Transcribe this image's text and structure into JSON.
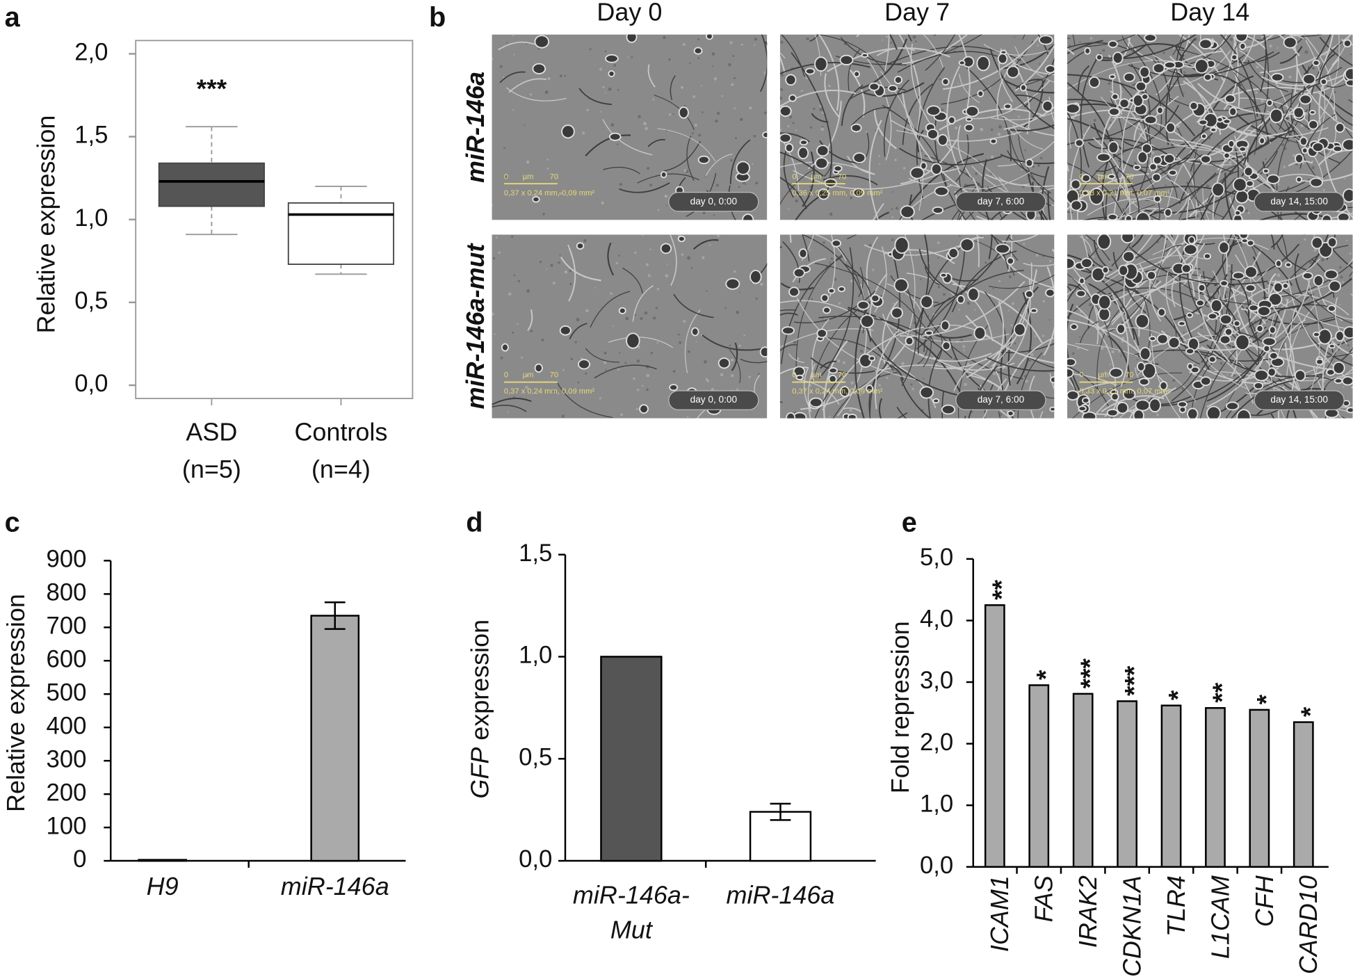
{
  "chart_data": [
    {
      "type": "box",
      "panel": "a",
      "ylabel": "Relative expression",
      "categories": [
        [
          "ASD",
          "(n=5)"
        ],
        [
          "Controls",
          "(n=4)"
        ]
      ],
      "boxes": [
        {
          "min": 0.91,
          "q1": 1.08,
          "median": 1.23,
          "q3": 1.34,
          "max": 1.56,
          "color": "#555555"
        },
        {
          "min": 0.67,
          "q1": 0.73,
          "median": 1.03,
          "q3": 1.1,
          "max": 1.2,
          "color": "#ffffff"
        }
      ],
      "annotations": [
        "***",
        null
      ],
      "ylim": [
        -0.08,
        2.08
      ],
      "yticks": [
        {
          "value": 0,
          "label": "0,0"
        },
        {
          "value": 0.5,
          "label": "0,5"
        },
        {
          "value": 1,
          "label": "1,0"
        },
        {
          "value": 1.5,
          "label": "1,5"
        },
        {
          "value": 2,
          "label": "2,0"
        }
      ]
    },
    {
      "type": "bar",
      "panel": "c",
      "ylabel": "Relative expression",
      "categories": [
        [
          "H9"
        ],
        [
          "miR-146a"
        ]
      ],
      "italic_categories": true,
      "values": [
        3,
        735
      ],
      "errors": [
        null,
        40
      ],
      "colors": [
        "#aaaaaa",
        "#aaaaaa"
      ],
      "ylim": [
        0,
        900
      ],
      "yticks": [
        0,
        100,
        200,
        300,
        400,
        500,
        600,
        700,
        800,
        900
      ]
    },
    {
      "type": "bar",
      "panel": "d",
      "ylabel_gene": "GFP",
      "ylabel": "expression",
      "categories": [
        [
          "miR-146a-",
          "Mut"
        ],
        [
          "miR-146a"
        ]
      ],
      "italic_categories": true,
      "values": [
        1.0,
        0.24
      ],
      "errors": [
        null,
        0.04
      ],
      "colors": [
        "#555555",
        "#ffffff"
      ],
      "ylim": [
        0,
        1.5
      ],
      "yticks": [
        {
          "value": 0,
          "label": "0,0"
        },
        {
          "value": 0.5,
          "label": "0,5"
        },
        {
          "value": 1,
          "label": "1,0"
        },
        {
          "value": 1.5,
          "label": "1,5"
        }
      ]
    },
    {
      "type": "bar",
      "panel": "e",
      "ylabel": "Fold repression",
      "categories": [
        [
          "ICAM1"
        ],
        [
          "FAS"
        ],
        [
          "IRAK2"
        ],
        [
          "CDKN1A"
        ],
        [
          "TLR4"
        ],
        [
          "L1CAM"
        ],
        [
          "CFH"
        ],
        [
          "CARD10"
        ]
      ],
      "italic_categories": true,
      "rotated_categories": true,
      "values": [
        4.25,
        2.95,
        2.81,
        2.69,
        2.62,
        2.58,
        2.55,
        2.35
      ],
      "colors": [
        "#aaaaaa",
        "#aaaaaa",
        "#aaaaaa",
        "#aaaaaa",
        "#aaaaaa",
        "#aaaaaa",
        "#aaaaaa",
        "#aaaaaa"
      ],
      "annotations": [
        "**",
        "*",
        "***",
        "***",
        "*",
        "**",
        "*",
        "*"
      ],
      "ylim": [
        0,
        5
      ],
      "yticks": [
        {
          "value": 0,
          "label": "0,0"
        },
        {
          "value": 1,
          "label": "1,0"
        },
        {
          "value": 2,
          "label": "2,0"
        },
        {
          "value": 3,
          "label": "3,0"
        },
        {
          "value": 4,
          "label": "4,0"
        },
        {
          "value": 5,
          "label": "5,0"
        }
      ]
    }
  ],
  "micrographs": {
    "panel": "b",
    "columns": [
      "Day 0",
      "Day 7",
      "Day 14"
    ],
    "rows": [
      "miR-146a",
      "miR-146a-mut"
    ],
    "images": [
      [
        {
          "timestamp": "day 0, 0:00",
          "area": "0,37 x 0,24 mm, 0,09 mm²",
          "scale_start": "0",
          "scale_unit": "µm",
          "scale_end": "70"
        },
        {
          "timestamp": "day 7, 6:00",
          "area": "0,36 x 0,25 mm, 0,09 mm²",
          "scale_start": "0",
          "scale_unit": "µm",
          "scale_end": "70"
        },
        {
          "timestamp": "day 14, 15:00",
          "area": "0,33 x 0,21 mm, 0,07 mm²",
          "scale_start": "0",
          "scale_unit": "µm",
          "scale_end": "70"
        }
      ],
      [
        {
          "timestamp": "day 0, 0:00",
          "area": "0,37 x 0,24 mm, 0,09 mm²",
          "scale_start": "0",
          "scale_unit": "µm",
          "scale_end": "70"
        },
        {
          "timestamp": "day 7, 6:00",
          "area": "0,37 x 0,24 mm, 0,09 mm²",
          "scale_start": "0",
          "scale_unit": "µm",
          "scale_end": "70"
        },
        {
          "timestamp": "day 14, 15:00",
          "area": "0,33 x 0,21 mm, 0,07 mm²",
          "scale_start": "0",
          "scale_unit": "µm",
          "scale_end": "70"
        }
      ]
    ]
  }
}
